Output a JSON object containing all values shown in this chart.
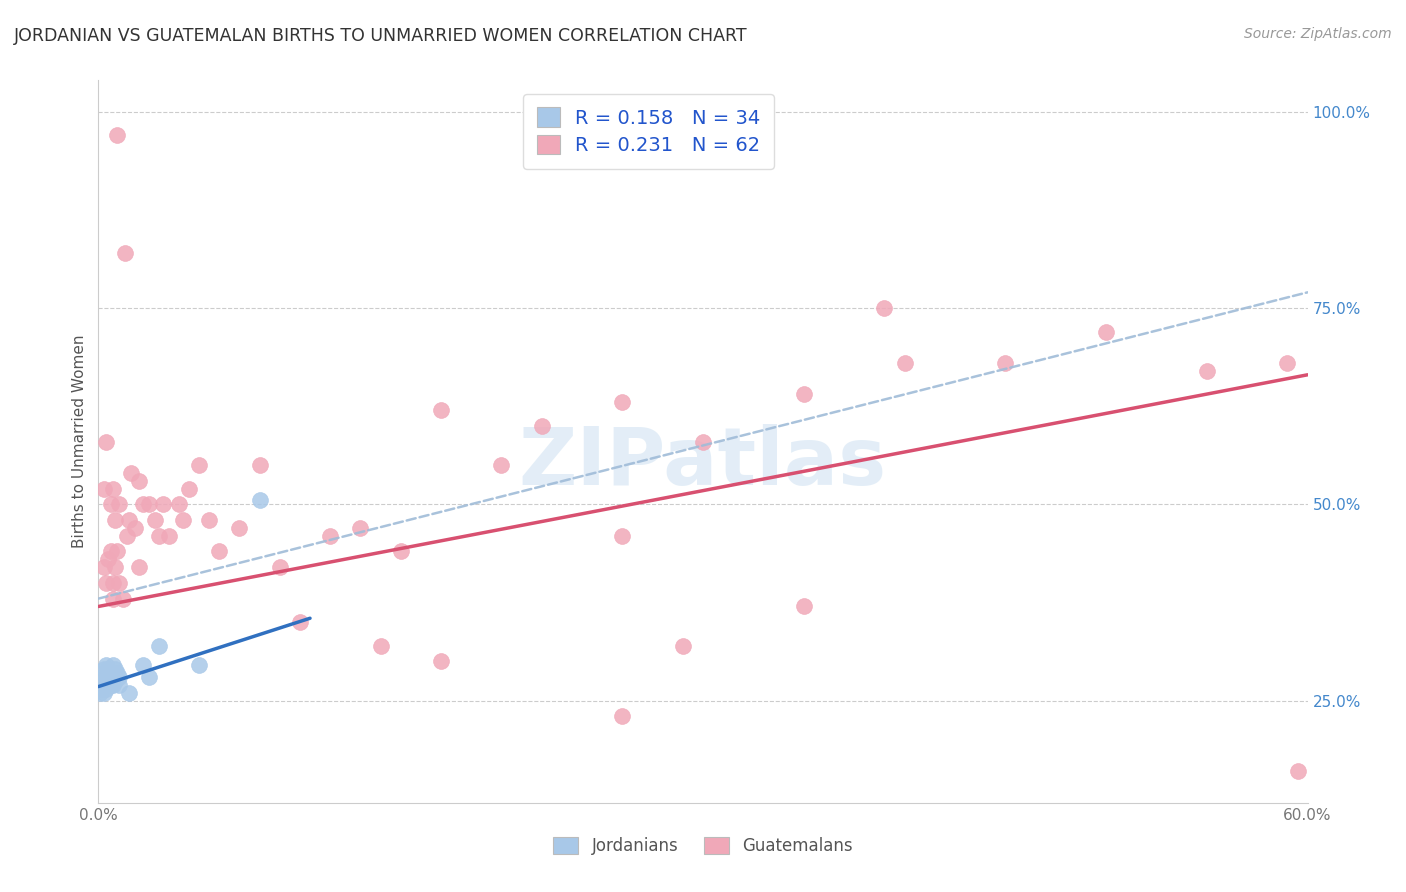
{
  "title": "JORDANIAN VS GUATEMALAN BIRTHS TO UNMARRIED WOMEN CORRELATION CHART",
  "source": "Source: ZipAtlas.com",
  "ylabel": "Births to Unmarried Women",
  "xlim": [
    0.0,
    0.6
  ],
  "ylim": [
    0.12,
    1.04
  ],
  "x_ticks": [
    0.0,
    0.12,
    0.24,
    0.36,
    0.48,
    0.6
  ],
  "x_tick_labels": [
    "0.0%",
    "",
    "",
    "",
    "",
    "60.0%"
  ],
  "y_ticks_right": [
    0.25,
    0.5,
    0.75,
    1.0
  ],
  "y_tick_labels_right": [
    "25.0%",
    "50.0%",
    "75.0%",
    "100.0%"
  ],
  "legend_blue_label": "R = 0.158   N = 34",
  "legend_pink_label": "R = 0.231   N = 62",
  "blue_color": "#a8c8e8",
  "pink_color": "#f0a8b8",
  "blue_line_color": "#3070c0",
  "pink_line_color": "#d85070",
  "dashed_line_color": "#a0bcd8",
  "watermark_text": "ZIPatlas",
  "jordanian_x": [
    0.001,
    0.002,
    0.002,
    0.002,
    0.003,
    0.003,
    0.003,
    0.003,
    0.003,
    0.004,
    0.004,
    0.004,
    0.004,
    0.005,
    0.005,
    0.005,
    0.005,
    0.006,
    0.006,
    0.006,
    0.007,
    0.007,
    0.008,
    0.008,
    0.008,
    0.009,
    0.01,
    0.01,
    0.015,
    0.022,
    0.025,
    0.03,
    0.05,
    0.08
  ],
  "jordanian_y": [
    0.26,
    0.27,
    0.265,
    0.28,
    0.27,
    0.268,
    0.29,
    0.26,
    0.275,
    0.28,
    0.265,
    0.295,
    0.27,
    0.275,
    0.28,
    0.27,
    0.29,
    0.28,
    0.27,
    0.285,
    0.295,
    0.27,
    0.28,
    0.275,
    0.29,
    0.285,
    0.27,
    0.28,
    0.26,
    0.295,
    0.28,
    0.32,
    0.295,
    0.505
  ],
  "jordanian_trend_x0": 0.0,
  "jordanian_trend_x1": 0.105,
  "jordanian_trend_y0": 0.268,
  "jordanian_trend_y1": 0.355,
  "guatemalan_x": [
    0.003,
    0.003,
    0.004,
    0.004,
    0.005,
    0.006,
    0.006,
    0.007,
    0.007,
    0.007,
    0.008,
    0.008,
    0.009,
    0.009,
    0.01,
    0.01,
    0.012,
    0.013,
    0.014,
    0.015,
    0.016,
    0.018,
    0.02,
    0.02,
    0.022,
    0.025,
    0.028,
    0.03,
    0.032,
    0.035,
    0.04,
    0.042,
    0.045,
    0.05,
    0.055,
    0.06,
    0.07,
    0.08,
    0.09,
    0.1,
    0.115,
    0.13,
    0.15,
    0.17,
    0.2,
    0.22,
    0.26,
    0.3,
    0.35,
    0.4,
    0.45,
    0.5,
    0.55,
    0.59,
    0.35,
    0.29,
    0.17,
    0.14,
    0.39,
    0.26,
    0.595,
    0.26
  ],
  "guatemalan_y": [
    0.42,
    0.52,
    0.4,
    0.58,
    0.43,
    0.44,
    0.5,
    0.4,
    0.52,
    0.38,
    0.48,
    0.42,
    0.44,
    0.97,
    0.4,
    0.5,
    0.38,
    0.82,
    0.46,
    0.48,
    0.54,
    0.47,
    0.42,
    0.53,
    0.5,
    0.5,
    0.48,
    0.46,
    0.5,
    0.46,
    0.5,
    0.48,
    0.52,
    0.55,
    0.48,
    0.44,
    0.47,
    0.55,
    0.42,
    0.35,
    0.46,
    0.47,
    0.44,
    0.62,
    0.55,
    0.6,
    0.63,
    0.58,
    0.64,
    0.68,
    0.68,
    0.72,
    0.67,
    0.68,
    0.37,
    0.32,
    0.3,
    0.32,
    0.75,
    0.46,
    0.16,
    0.23
  ],
  "guatemalan_trend_x0": 0.0,
  "guatemalan_trend_x1": 0.6,
  "guatemalan_trend_y0": 0.37,
  "guatemalan_trend_y1": 0.665,
  "dashed_trend_x0": 0.0,
  "dashed_trend_x1": 0.6,
  "dashed_trend_y0": 0.38,
  "dashed_trend_y1": 0.77
}
